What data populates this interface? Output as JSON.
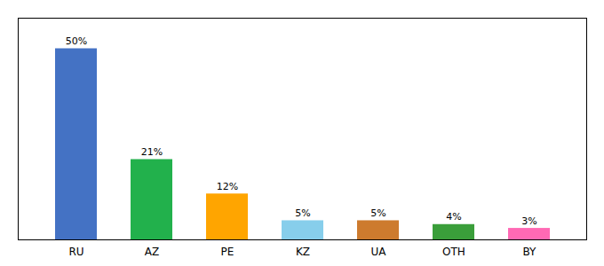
{
  "chart_data": {
    "type": "bar",
    "categories": [
      "RU",
      "AZ",
      "PE",
      "KZ",
      "UA",
      "OTH",
      "BY"
    ],
    "values": [
      50,
      21,
      12,
      5,
      5,
      4,
      3
    ],
    "value_labels": [
      "50%",
      "21%",
      "12%",
      "5%",
      "5%",
      "4%",
      "3%"
    ],
    "colors": [
      "#4472C4",
      "#22B14C",
      "#FFA500",
      "#87CEEB",
      "#CD7B2E",
      "#3A9E3A",
      "#FF69B4"
    ],
    "ylim": [
      0,
      58
    ],
    "grid": false,
    "data_labels": true,
    "tick_labels": "x"
  }
}
